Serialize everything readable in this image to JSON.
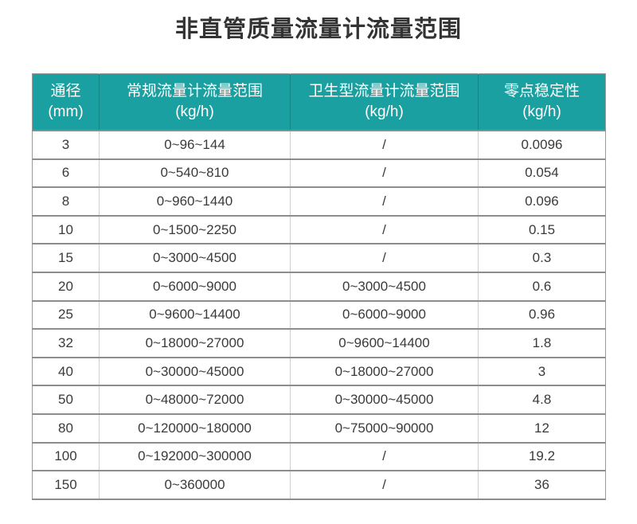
{
  "title": "非直管质量流量计流量范围",
  "colors": {
    "header_bg": "#1aa0a0",
    "header_text": "#ffffff",
    "body_text": "#3a3a3a",
    "title_text": "#333333",
    "row_border": "#8d8d8d",
    "column_border": "#cfcfcf",
    "page_bg": "#ffffff"
  },
  "table": {
    "columns": [
      {
        "label": "通径",
        "unit": "(mm)"
      },
      {
        "label": "常规流量计流量范围",
        "unit": "(kg/h)"
      },
      {
        "label": "卫生型流量计流量范围",
        "unit": "(kg/h)"
      },
      {
        "label": "零点稳定性",
        "unit": "(kg/h)"
      }
    ],
    "rows": [
      [
        "3",
        "0~96~144",
        "/",
        "0.0096"
      ],
      [
        "6",
        "0~540~810",
        "/",
        "0.054"
      ],
      [
        "8",
        "0~960~1440",
        "/",
        "0.096"
      ],
      [
        "10",
        "0~1500~2250",
        "/",
        "0.15"
      ],
      [
        "15",
        "0~3000~4500",
        "/",
        "0.3"
      ],
      [
        "20",
        "0~6000~9000",
        "0~3000~4500",
        "0.6"
      ],
      [
        "25",
        "0~9600~14400",
        "0~6000~9000",
        "0.96"
      ],
      [
        "32",
        "0~18000~27000",
        "0~9600~14400",
        "1.8"
      ],
      [
        "40",
        "0~30000~45000",
        "0~18000~27000",
        "3"
      ],
      [
        "50",
        "0~48000~72000",
        "0~30000~45000",
        "4.8"
      ],
      [
        "80",
        "0~120000~180000",
        "0~75000~90000",
        "12"
      ],
      [
        "100",
        "0~192000~300000",
        "/",
        "19.2"
      ],
      [
        "150",
        "0~360000",
        "/",
        "36"
      ]
    ]
  }
}
